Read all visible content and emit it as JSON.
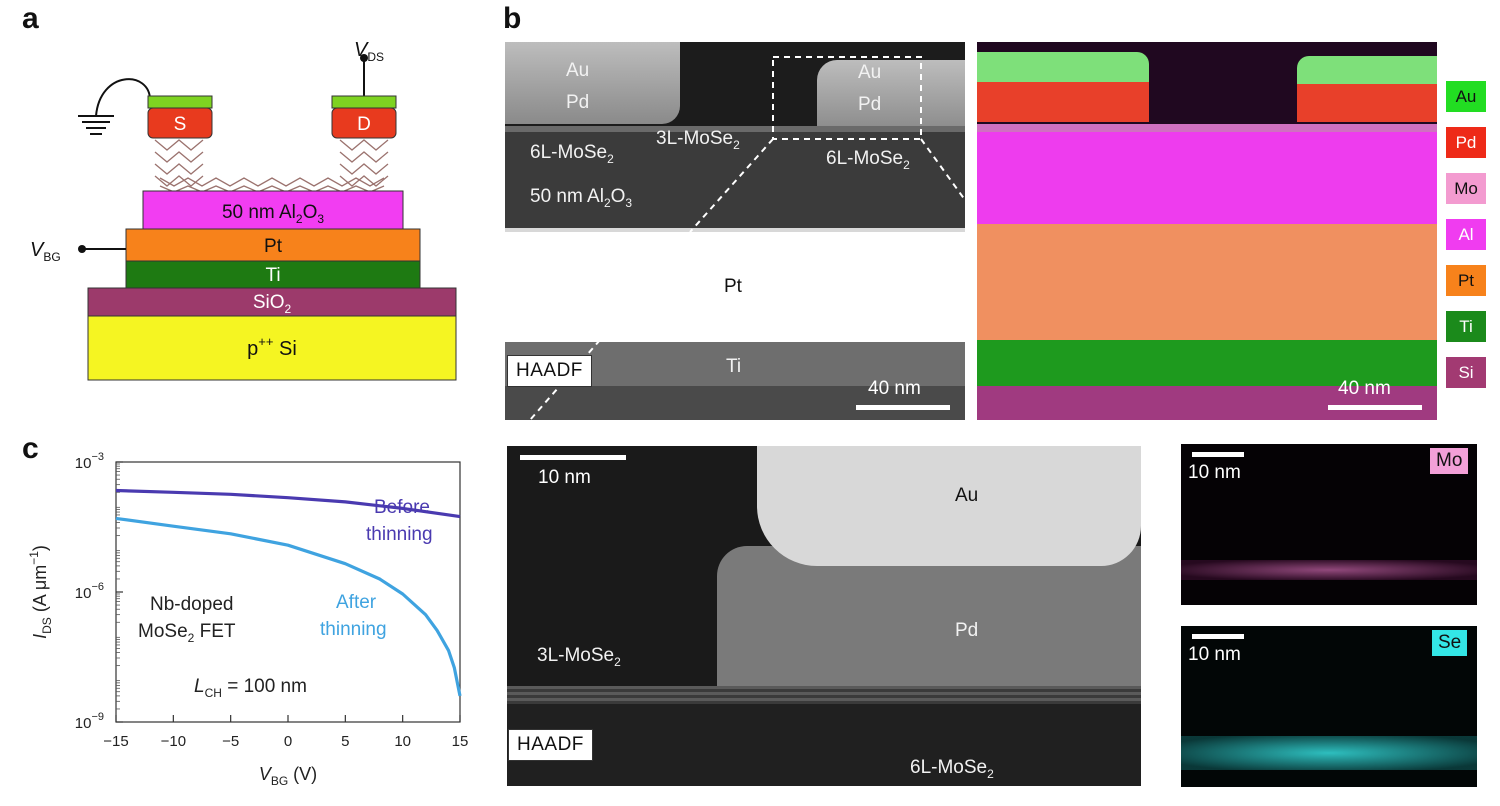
{
  "panels": {
    "a": "a",
    "b": "b",
    "c": "c"
  },
  "panel_a": {
    "vds_label": "V",
    "vds_sub": "DS",
    "vbg_label": "V",
    "vbg_sub": "BG",
    "source": "S",
    "drain": "D",
    "layers": {
      "oxide": "50 nm Al",
      "oxide_sub": "2",
      "oxide_tail": "O",
      "oxide_sub2": "3",
      "pt": "Pt",
      "ti": "Ti",
      "sio2": "SiO",
      "sio2_sub": "2",
      "si": "p",
      "si_sup": "++",
      "si_tail": " Si"
    },
    "colors": {
      "contact_green": "#7ed321",
      "contact_red": "#e83a1e",
      "oxide": "#f23df2",
      "pt": "#f7821b",
      "ti": "#1e7a12",
      "sio2": "#9c3a6b",
      "si": "#f5f522"
    }
  },
  "panel_b": {
    "au_left": "Au",
    "pd_left": "Pd",
    "au_right": "Au",
    "pd_right": "Pd",
    "mos_left": "6L-MoSe",
    "mos_left_sub": "2",
    "mos_mid": "3L-MoSe",
    "mos_mid_sub": "2",
    "mos_right": "6L-MoSe",
    "mos_right_sub": "2",
    "oxide": "50 nm Al",
    "oxide_sub": "2",
    "oxide_tail": "O",
    "oxide_sub2": "3",
    "pt": "Pt",
    "ti": "Ti",
    "haadf": "HAADF",
    "scale": "40 nm",
    "eds_scale": "40 nm",
    "legend": [
      {
        "label": "Au",
        "color": "#22dd22",
        "text_color": "#111111"
      },
      {
        "label": "Pd",
        "color": "#ee2a18",
        "text_color": "#ffffff"
      },
      {
        "label": "Mo",
        "color": "#f39bd0",
        "text_color": "#111111"
      },
      {
        "label": "Al",
        "color": "#f03cf0",
        "text_color": "#ffffff"
      },
      {
        "label": "Pt",
        "color": "#f7821b",
        "text_color": "#111111"
      },
      {
        "label": "Ti",
        "color": "#1b8a1b",
        "text_color": "#ffffff"
      },
      {
        "label": "Si",
        "color": "#a23a72",
        "text_color": "#ffffff"
      }
    ]
  },
  "panel_zoom": {
    "scale": "10 nm",
    "au": "Au",
    "pd": "Pd",
    "mos_left": "3L-MoSe",
    "mos_left_sub": "2",
    "mos_right": "6L-MoSe",
    "mos_right_sub": "2",
    "haadf": "HAADF",
    "mo_scale": "10 nm",
    "mo_tag": "Mo",
    "se_scale": "10 nm",
    "se_tag": "Se",
    "mo_color": "#f3a0d8",
    "se_color": "#33e6e6"
  },
  "chart_data": {
    "type": "line",
    "xlabel": "V",
    "xlabel_sub": "BG",
    "xlabel_unit": " (V)",
    "ylabel": "I",
    "ylabel_sub": "DS",
    "ylabel_unit": " (A μm",
    "ylabel_sup": "−1",
    "ylabel_close": ")",
    "yscale": "log",
    "xlim": [
      -15,
      15
    ],
    "ylim": [
      1e-09,
      0.001
    ],
    "xticks": [
      "−15",
      "−10",
      "−5",
      "0",
      "5",
      "10",
      "15"
    ],
    "xtick_values": [
      -15,
      -10,
      -5,
      0,
      5,
      10,
      15
    ],
    "yticks": [
      {
        "base": "10",
        "exp": "−3",
        "value": 0.001
      },
      {
        "base": "10",
        "exp": "−6",
        "value": 1e-06
      },
      {
        "base": "10",
        "exp": "−9",
        "value": 1e-09
      }
    ],
    "annotations": {
      "device_line1": "Nb-doped",
      "device_line2": "MoSe",
      "device_line2_sub": "2",
      "device_line2_tail": " FET",
      "lch": "L",
      "lch_sub": "CH",
      "lch_tail": " = 100 nm"
    },
    "series": [
      {
        "name": "Before thinning",
        "label_line1": "Before",
        "label_line2": "thinning",
        "color": "#4a3ab0",
        "x": [
          -15,
          -10,
          -5,
          0,
          5,
          10,
          15
        ],
        "y": [
          0.00022,
          0.0002,
          0.00018,
          0.00015,
          0.00012,
          8.5e-05,
          5.5e-05
        ]
      },
      {
        "name": "After thinning",
        "label_line1": "After",
        "label_line2": "thinning",
        "color": "#3fa3e0",
        "x": [
          -15,
          -10,
          -5,
          0,
          5,
          8,
          10,
          12,
          13,
          14,
          14.5,
          15
        ],
        "y": [
          5e-05,
          3.3e-05,
          2.2e-05,
          1.2e-05,
          4.5e-06,
          2e-06,
          9e-07,
          3e-07,
          1.3e-07,
          4.5e-08,
          1.8e-08,
          4e-09
        ]
      }
    ]
  }
}
